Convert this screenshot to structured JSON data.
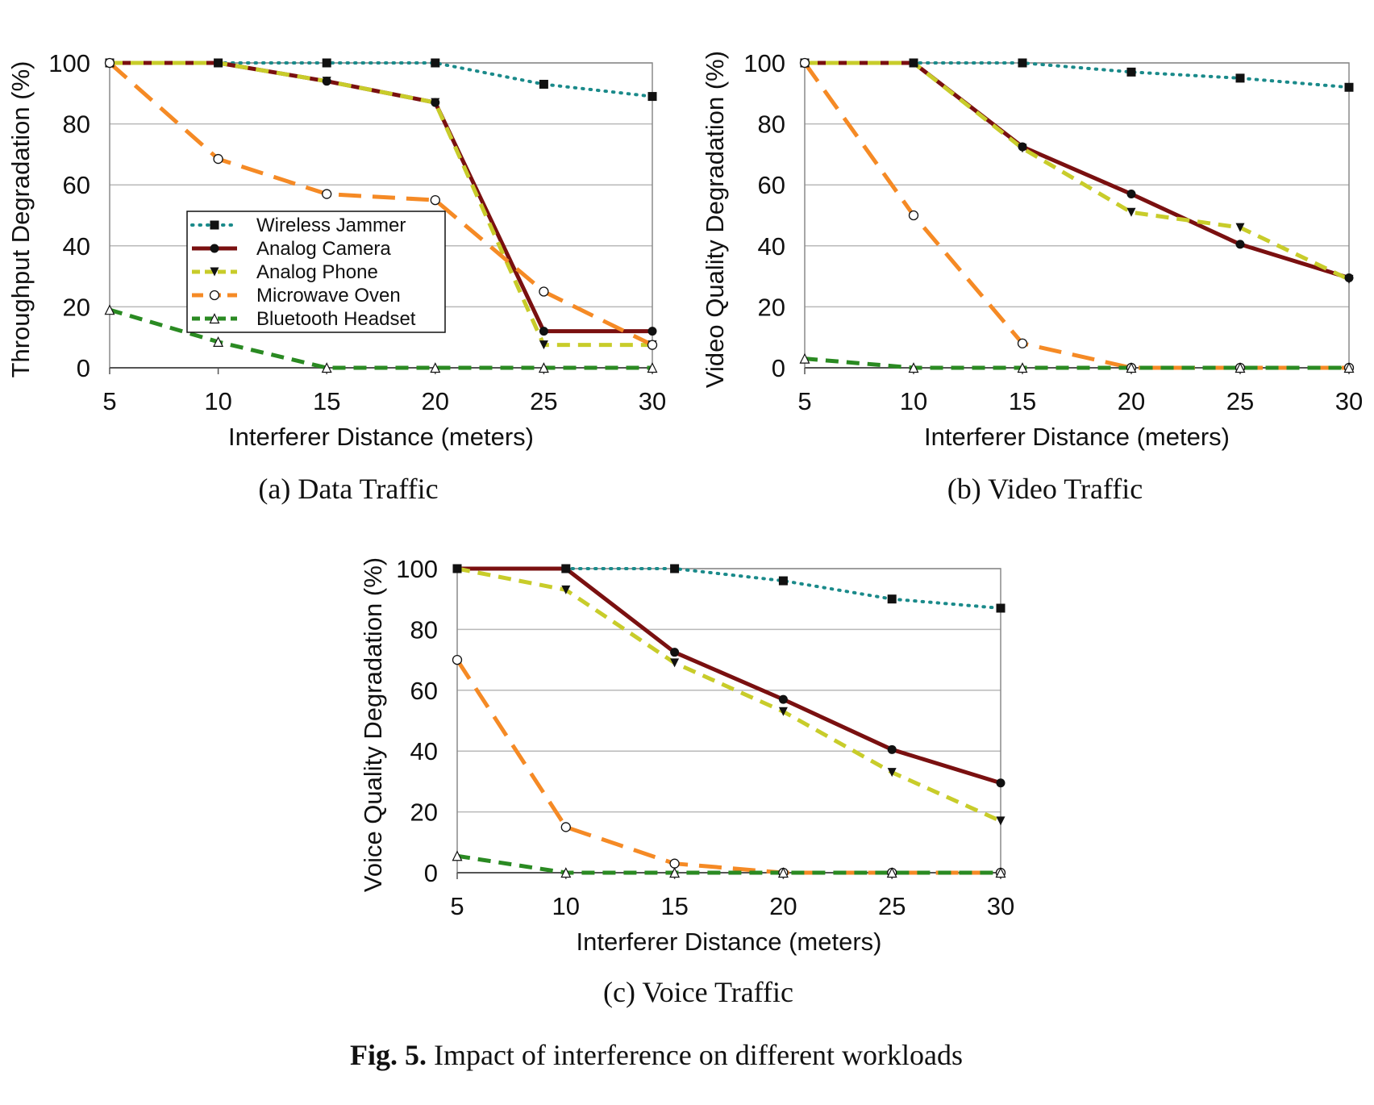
{
  "figure": {
    "caption_label": "Fig. 5.",
    "caption_text": " Impact of interference on different workloads"
  },
  "styles": {
    "Wireless Jammer": {
      "color": "#1a8a8a",
      "marker": "square",
      "dash": "dotted"
    },
    "Analog Camera": {
      "color": "#7a1010",
      "marker": "circle-filled",
      "dash": "solid"
    },
    "Analog Phone": {
      "color": "#c8cc2a",
      "marker": "triangle-down",
      "dash": "dashed"
    },
    "Microwave Oven": {
      "color": "#f58a25",
      "marker": "circle-open",
      "dash": "longdash"
    },
    "Bluetooth Headset": {
      "color": "#2a8a22",
      "marker": "triangle-up-open",
      "dash": "dashed"
    }
  },
  "chart_data": [
    {
      "type": "line",
      "caption": "(a) Data Traffic",
      "xlabel": "Interferer Distance (meters)",
      "ylabel": "Throughput Degradation (%)",
      "x": [
        5,
        10,
        15,
        20,
        25,
        30
      ],
      "xlim": [
        5,
        30
      ],
      "ylim": [
        0,
        100
      ],
      "yticks": [
        0,
        20,
        40,
        60,
        80,
        100
      ],
      "grid": true,
      "legend": "center-left",
      "series": [
        {
          "name": "Wireless Jammer",
          "values": [
            100,
            100,
            100,
            100,
            93,
            89
          ]
        },
        {
          "name": "Analog Camera",
          "values": [
            100,
            100,
            94,
            87,
            12,
            12
          ]
        },
        {
          "name": "Analog Phone",
          "values": [
            100,
            100,
            94,
            87,
            7.5,
            7.5
          ]
        },
        {
          "name": "Microwave Oven",
          "values": [
            100,
            68.5,
            57,
            55,
            25,
            7.5
          ]
        },
        {
          "name": "Bluetooth Headset",
          "values": [
            19,
            8.5,
            0,
            0,
            0,
            0
          ]
        }
      ]
    },
    {
      "type": "line",
      "caption": "(b) Video Traffic",
      "xlabel": "Interferer Distance (meters)",
      "ylabel": "Video Quality Degradation (%)",
      "x": [
        5,
        10,
        15,
        20,
        25,
        30
      ],
      "xlim": [
        5,
        30
      ],
      "ylim": [
        0,
        100
      ],
      "yticks": [
        0,
        20,
        40,
        60,
        80,
        100
      ],
      "grid": true,
      "legend": "none",
      "series": [
        {
          "name": "Wireless Jammer",
          "values": [
            100,
            100,
            100,
            97,
            95,
            92
          ]
        },
        {
          "name": "Analog Camera",
          "values": [
            100,
            100,
            72.5,
            57,
            40.5,
            29.5
          ]
        },
        {
          "name": "Analog Phone",
          "values": [
            100,
            100,
            72,
            51,
            46,
            29
          ]
        },
        {
          "name": "Microwave Oven",
          "values": [
            100,
            50,
            8,
            0,
            0,
            0
          ]
        },
        {
          "name": "Bluetooth Headset",
          "values": [
            3,
            0,
            0,
            0,
            0,
            0
          ]
        }
      ]
    },
    {
      "type": "line",
      "caption": "(c) Voice Traffic",
      "xlabel": "Interferer Distance (meters)",
      "ylabel": "Voice Quality Degradation (%)",
      "x": [
        5,
        10,
        15,
        20,
        25,
        30
      ],
      "xlim": [
        5,
        30
      ],
      "ylim": [
        0,
        100
      ],
      "yticks": [
        0,
        20,
        40,
        60,
        80,
        100
      ],
      "grid": true,
      "legend": "none",
      "series": [
        {
          "name": "Wireless Jammer",
          "values": [
            100,
            100,
            100,
            96,
            90,
            87
          ]
        },
        {
          "name": "Analog Camera",
          "values": [
            100,
            100,
            72.5,
            57,
            40.5,
            29.5
          ]
        },
        {
          "name": "Analog Phone",
          "values": [
            100,
            93,
            69,
            53,
            33,
            17
          ]
        },
        {
          "name": "Microwave Oven",
          "values": [
            70,
            15,
            3,
            0,
            0,
            0
          ]
        },
        {
          "name": "Bluetooth Headset",
          "values": [
            5.5,
            0,
            0,
            0,
            0,
            0
          ]
        }
      ]
    }
  ]
}
